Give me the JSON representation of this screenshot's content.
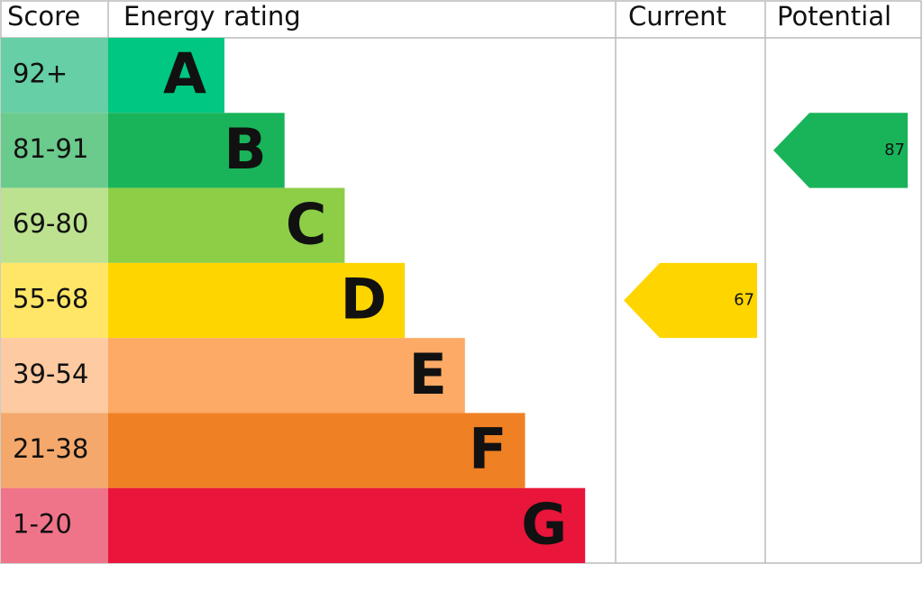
{
  "chart_data": {
    "type": "epc",
    "headers": [
      "Score",
      "Energy rating",
      "Current",
      "Potential"
    ],
    "bands": [
      {
        "score": "92+",
        "letter": "A",
        "color": "#00c781",
        "score_color": "#66cfa6"
      },
      {
        "score": "81-91",
        "letter": "B",
        "color": "#19b459",
        "score_color": "#6acb8c"
      },
      {
        "score": "69-80",
        "letter": "C",
        "color": "#8dce46",
        "score_color": "#bde28f"
      },
      {
        "score": "55-68",
        "letter": "D",
        "color": "#ffd500",
        "score_color": "#ffe666"
      },
      {
        "score": "39-54",
        "letter": "E",
        "color": "#fcaa65",
        "score_color": "#fdcaa1"
      },
      {
        "score": "21-38",
        "letter": "F",
        "color": "#ef8023",
        "score_color": "#f4a86c"
      },
      {
        "score": "1-20",
        "letter": "G",
        "color": "#e9153b",
        "score_color": "#f07489"
      }
    ],
    "current": {
      "value": 67,
      "color": "#ffd500"
    },
    "potential": {
      "value": 87,
      "color": "#19b459"
    }
  }
}
